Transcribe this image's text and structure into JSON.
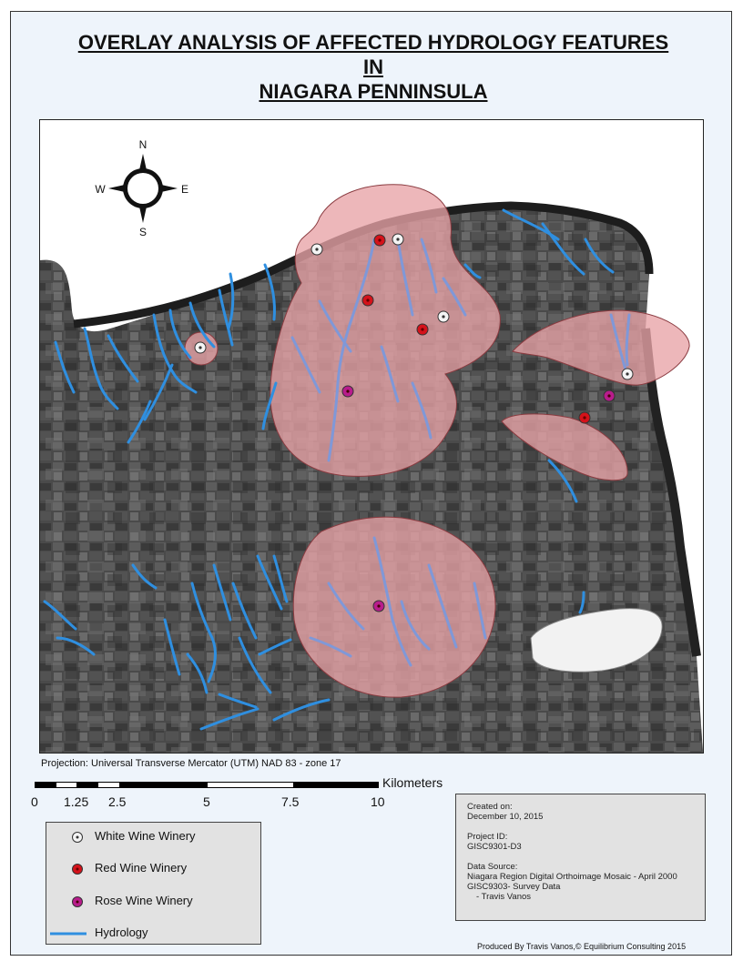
{
  "title": {
    "line1": "OVERLAY ANALYSIS OF AFFECTED HYDROLOGY FEATURES",
    "line2": "IN",
    "line3": "NIAGARA PENNINSULA"
  },
  "compass": {
    "n": "N",
    "s": "S",
    "e": "E",
    "w": "W"
  },
  "projection": "Projection: Universal Transverse Mercator (UTM) NAD 83 - zone 17",
  "scale": {
    "unit": "Kilometers",
    "ticks": [
      "0",
      "1.25",
      "2.5",
      "5",
      "7.5",
      "10"
    ]
  },
  "legend": {
    "white": "White Wine Winery",
    "red": "Red Wine Winery",
    "rose": "Rose Wine Winery",
    "hydro": "Hydrology"
  },
  "info": {
    "created_label": "Created on:",
    "created_value": "December 10, 2015",
    "project_label": "Project ID:",
    "project_value": "GISC9301-D3",
    "source_label": "Data Source:",
    "source_1": "Niagara Region Digital Orthoimage Mosaic - April 2000",
    "source_2": "GISC9303- Survey Data",
    "source_3": "- Travis Vanos"
  },
  "produced": "Produced By Travis Vanos,© Equilibrium Consulting 2015",
  "colors": {
    "buffer": "#e8a3a6",
    "buffer_stroke": "#8a3b40",
    "hydro": "#2f8fe0",
    "white": "#f4f4f4",
    "red": "#d4121a",
    "rose": "#b81c8c",
    "lake": "#f2f2f2"
  }
}
